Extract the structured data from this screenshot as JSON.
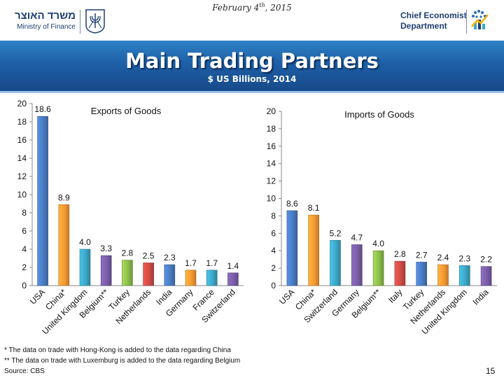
{
  "header": {
    "date_prefix": "February 4",
    "date_sup": "th",
    "date_suffix": ", 2015",
    "ministry_hebrew": "משרד האוצר",
    "ministry_english": "Ministry of Finance",
    "dept_line1": "Chief Economist",
    "dept_line2": "Department"
  },
  "banner": {
    "title": "Main Trading Partners",
    "subtitle": "$ US Billions, 2014"
  },
  "chart_data": [
    {
      "type": "bar",
      "title": "Exports of Goods",
      "categories": [
        "USA",
        "China*",
        "United Kingdom",
        "Belgium**",
        "Turkey",
        "Netherlands",
        "India",
        "Germany",
        "France",
        "Switzerland"
      ],
      "values": [
        18.6,
        8.9,
        4.0,
        3.3,
        2.8,
        2.5,
        2.3,
        1.7,
        1.7,
        1.4
      ],
      "labels": [
        "18.6",
        "8.9",
        "4.0",
        "3.3",
        "2.8",
        "2.5",
        "2.3",
        "1.7",
        "1.7",
        "1.4"
      ],
      "colors": [
        "#4a7cc4",
        "#f79a32",
        "#3ca8c8",
        "#7a5ea8",
        "#8cbe4c",
        "#d14b46",
        "#4a7cc4",
        "#f79a32",
        "#3ca8c8",
        "#7a5ea8"
      ],
      "ylim": [
        0,
        20
      ],
      "yticks": [
        0,
        2,
        4,
        6,
        8,
        10,
        12,
        14,
        16,
        18,
        20
      ],
      "grid": false
    },
    {
      "type": "bar",
      "title": "Imports of Goods",
      "categories": [
        "USA",
        "China*",
        "Switzerland",
        "Germany",
        "Belgium**",
        "Italy",
        "Turkey",
        "Netherlands",
        "United Kingdom",
        "India"
      ],
      "values": [
        8.6,
        8.1,
        5.2,
        4.7,
        4.0,
        2.8,
        2.7,
        2.4,
        2.3,
        2.2
      ],
      "labels": [
        "8.6",
        "8.1",
        "5.2",
        "4.7",
        "4.0",
        "2.8",
        "2.7",
        "2.4",
        "2.3",
        "2.2"
      ],
      "colors": [
        "#4a7cc4",
        "#f79a32",
        "#3ca8c8",
        "#7a5ea8",
        "#8cbe4c",
        "#d14b46",
        "#4a7cc4",
        "#f79a32",
        "#3ca8c8",
        "#7a5ea8"
      ],
      "ylim": [
        0,
        20
      ],
      "yticks": [
        0,
        2,
        4,
        6,
        8,
        10,
        12,
        14,
        16,
        18,
        20
      ],
      "grid": false
    }
  ],
  "footnotes": {
    "note1": "* The data on trade with Hong-Kong is added to the data regarding China",
    "note2": "** The data on trade with Luxemburg is added to the data regarding Belgium",
    "source": "Source: CBS",
    "page_number": "15"
  }
}
